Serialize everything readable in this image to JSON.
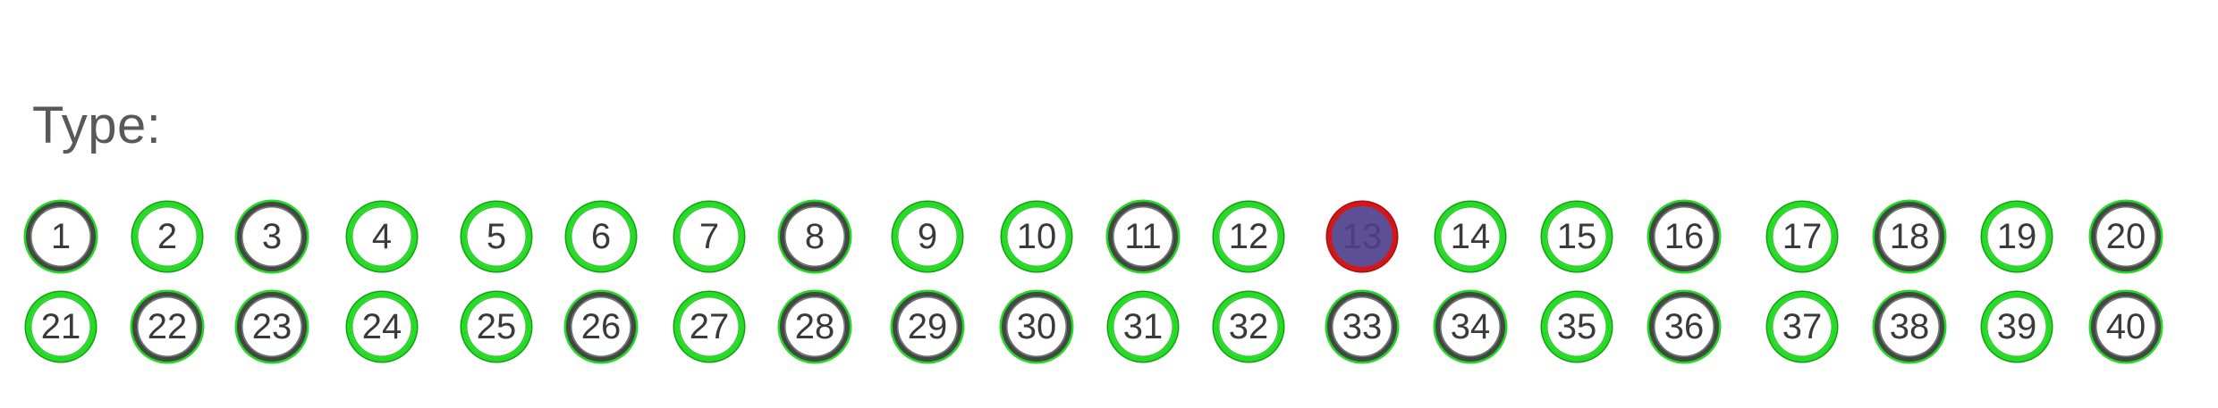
{
  "type_label": "Type:",
  "accent_colors": {
    "ring_green": "#22dd22",
    "ring_dark": "#3f4a40",
    "selected_fill": "#5d4f95",
    "selected_ring": "#d41616"
  },
  "selected": "13",
  "options": [
    {
      "label": "1",
      "ring": "dark"
    },
    {
      "label": "2",
      "ring": "green"
    },
    {
      "label": "3",
      "ring": "dark"
    },
    {
      "label": "4",
      "ring": "green"
    },
    {
      "label": "5",
      "ring": "green"
    },
    {
      "label": "6",
      "ring": "green"
    },
    {
      "label": "7",
      "ring": "green"
    },
    {
      "label": "8",
      "ring": "dark"
    },
    {
      "label": "9",
      "ring": "green"
    },
    {
      "label": "10",
      "ring": "green"
    },
    {
      "label": "11",
      "ring": "dark"
    },
    {
      "label": "12",
      "ring": "green"
    },
    {
      "label": "13",
      "ring": "selected"
    },
    {
      "label": "14",
      "ring": "green"
    },
    {
      "label": "15",
      "ring": "green"
    },
    {
      "label": "16",
      "ring": "dark"
    },
    {
      "label": "17",
      "ring": "green"
    },
    {
      "label": "18",
      "ring": "dark"
    },
    {
      "label": "19",
      "ring": "green"
    },
    {
      "label": "20",
      "ring": "dark"
    },
    {
      "label": "21",
      "ring": "green"
    },
    {
      "label": "22",
      "ring": "dark"
    },
    {
      "label": "23",
      "ring": "dark"
    },
    {
      "label": "24",
      "ring": "green"
    },
    {
      "label": "25",
      "ring": "green"
    },
    {
      "label": "26",
      "ring": "dark"
    },
    {
      "label": "27",
      "ring": "green"
    },
    {
      "label": "28",
      "ring": "dark"
    },
    {
      "label": "29",
      "ring": "dark"
    },
    {
      "label": "30",
      "ring": "dark"
    },
    {
      "label": "31",
      "ring": "green"
    },
    {
      "label": "32",
      "ring": "green"
    },
    {
      "label": "33",
      "ring": "dark"
    },
    {
      "label": "34",
      "ring": "dark"
    },
    {
      "label": "35",
      "ring": "green"
    },
    {
      "label": "36",
      "ring": "dark"
    },
    {
      "label": "37",
      "ring": "green"
    },
    {
      "label": "38",
      "ring": "dark"
    },
    {
      "label": "39",
      "ring": "green"
    },
    {
      "label": "40",
      "ring": "dark"
    }
  ]
}
